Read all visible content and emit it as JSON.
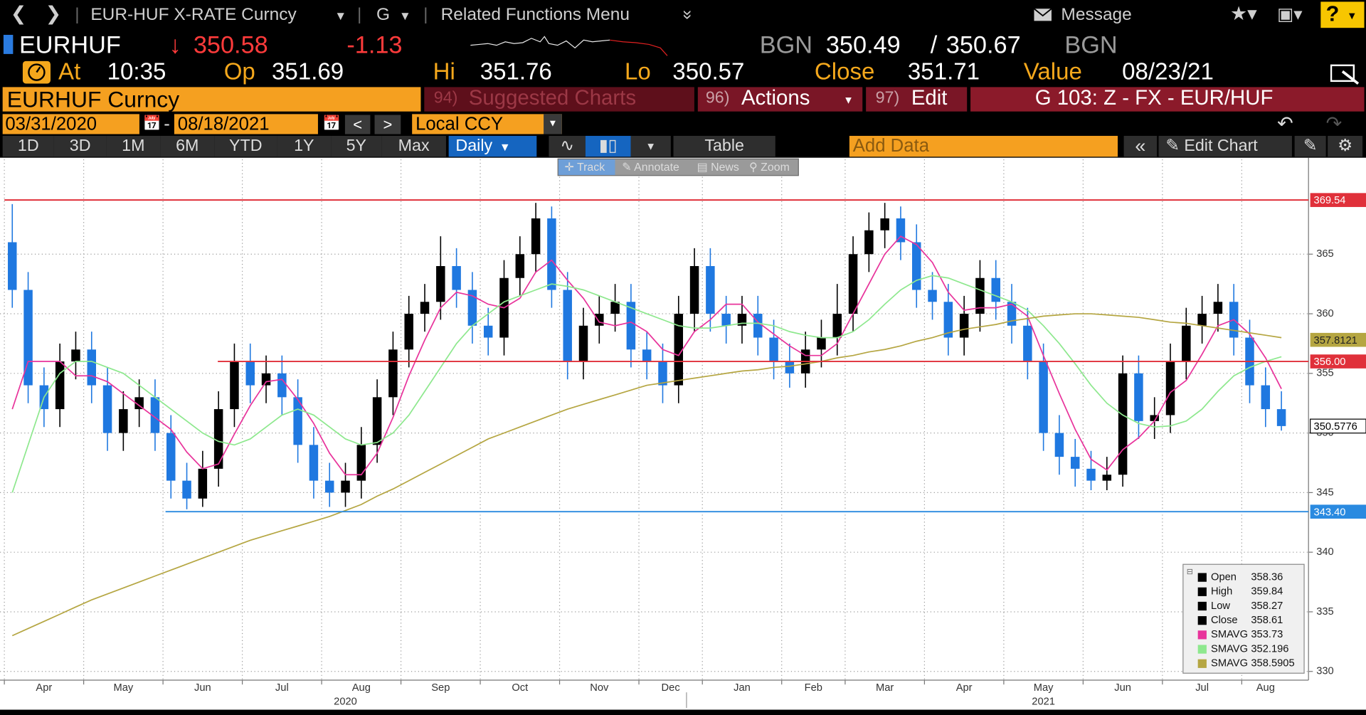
{
  "toolbar": {
    "security": "EUR-HUF X-RATE Curncy",
    "mode": "G",
    "menu": "Related Functions Menu",
    "message": "Message",
    "help": "?"
  },
  "quote": {
    "ticker": "EURHUF",
    "last": "350.58",
    "change": "-1.13",
    "bid_source": "BGN",
    "bid": "350.49",
    "ask": "350.67",
    "ask_source": "BGN",
    "time_label": "At",
    "time": "10:35",
    "open_label": "Op",
    "open": "351.69",
    "high_label": "Hi",
    "high": "351.76",
    "low_label": "Lo",
    "low": "350.57",
    "close_label": "Close",
    "close": "351.71",
    "value_label": "Value",
    "value_date": "08/23/21"
  },
  "bar": {
    "security": "EURHUF Curncy",
    "suggested_num": "94)",
    "suggested": "Suggested Charts",
    "actions_num": "96)",
    "actions": "Actions",
    "edit_num": "97)",
    "edit": "Edit",
    "page": "G 103: Z - FX - EUR/HUF"
  },
  "range": {
    "start": "03/31/2020",
    "end": "08/18/2021",
    "currency": "Local CCY"
  },
  "periods": [
    "1D",
    "3D",
    "1M",
    "6M",
    "YTD",
    "1Y",
    "5Y",
    "Max"
  ],
  "frequency": "Daily",
  "table": "Table",
  "add_data": "Add Data",
  "edit_chart": "Edit Chart",
  "tools": [
    "Track",
    "Annotate",
    "News",
    "Zoom"
  ],
  "chart_data": {
    "type": "candlestick",
    "up_color": "#000000",
    "down_color": "#1f78e0",
    "grid": true,
    "categories": [
      "Apr",
      null,
      null,
      null,
      null,
      "May",
      null,
      null,
      null,
      null,
      "Jun",
      null,
      null,
      null,
      null,
      "Jul",
      null,
      null,
      null,
      null,
      "Aug",
      null,
      null,
      null,
      null,
      "Sep",
      null,
      null,
      null,
      null,
      "Oct",
      null,
      null,
      null,
      null,
      "Nov",
      null,
      null,
      null,
      null,
      "Dec",
      null,
      null,
      null,
      "Jan",
      null,
      null,
      null,
      null,
      "Feb",
      null,
      null,
      null,
      "Mar",
      null,
      null,
      null,
      null,
      "Apr",
      null,
      null,
      null,
      null,
      "May",
      null,
      null,
      null,
      null,
      "Jun",
      null,
      null,
      null,
      null,
      "Jul",
      null,
      null,
      null,
      null,
      "Aug",
      null,
      null
    ],
    "year_categories": [
      null,
      null,
      null,
      null,
      null,
      null,
      null,
      null,
      null,
      null,
      null,
      null,
      null,
      null,
      null,
      null,
      null,
      null,
      null,
      null,
      null,
      "2020",
      null,
      null,
      null,
      null,
      null,
      null,
      null,
      null,
      null,
      null,
      null,
      null,
      null,
      null,
      null,
      null,
      null,
      null,
      null,
      null,
      null,
      null,
      null,
      null,
      null,
      null,
      null,
      null,
      null,
      null,
      null,
      null,
      null,
      null,
      null,
      null,
      null,
      null,
      null,
      null,
      null,
      null,
      null,
      "2021",
      null,
      null,
      null,
      null,
      null,
      null,
      null,
      null,
      null,
      null,
      null,
      null,
      null,
      null,
      null
    ],
    "open": [
      366,
      362,
      354,
      352,
      356,
      357,
      354,
      350,
      352,
      353,
      350,
      346,
      344.5,
      347,
      352,
      356,
      354,
      355,
      353,
      349,
      346,
      345,
      346,
      349,
      353,
      357,
      360,
      361,
      364,
      362,
      359,
      358,
      363,
      365,
      368,
      362,
      356,
      359,
      360,
      361,
      357,
      356,
      354,
      360,
      364,
      360,
      359,
      360,
      358,
      356,
      355,
      357,
      358,
      360,
      365,
      367,
      368,
      366,
      362,
      361,
      358,
      360,
      363,
      361,
      359,
      356,
      350,
      348,
      347,
      346,
      346.5,
      355,
      351,
      351.5,
      356,
      359,
      360,
      361,
      358,
      354,
      352
    ],
    "high": [
      369.2,
      363.5,
      355.5,
      357.5,
      358.5,
      358.5,
      355.5,
      353.5,
      354.5,
      354.5,
      351.5,
      347.5,
      348.5,
      353.5,
      357.5,
      357.5,
      356.5,
      356.5,
      354.5,
      350.5,
      347.5,
      347.5,
      350.5,
      354.5,
      358.5,
      361.5,
      362.5,
      366.5,
      365.5,
      363.5,
      360.5,
      364.5,
      366.5,
      369.3,
      369,
      363.5,
      360.5,
      361.5,
      362.5,
      362.5,
      358.5,
      357.5,
      361.5,
      365.5,
      365.5,
      361.5,
      361.5,
      361.5,
      359.5,
      357.5,
      358.5,
      359.5,
      362.5,
      366.5,
      368.5,
      369.3,
      369,
      367.5,
      363.5,
      362.5,
      361.5,
      364.5,
      364.5,
      362.5,
      360.5,
      357.5,
      351.5,
      349.5,
      348.5,
      348,
      356.5,
      356.5,
      353,
      357.5,
      360.5,
      361.5,
      362.5,
      362.5,
      359.5,
      355.5,
      353.5
    ],
    "low": [
      360.5,
      352.5,
      350.5,
      350.5,
      354.5,
      352.5,
      348.5,
      348.5,
      350.5,
      348.5,
      344.5,
      343.6,
      343.8,
      345.5,
      350.5,
      352.5,
      352.5,
      351.5,
      347.5,
      344.5,
      343.8,
      343.8,
      344.5,
      347.5,
      351.5,
      355.5,
      358.5,
      359.5,
      360.5,
      357.5,
      356.5,
      356.5,
      361.5,
      363.5,
      360.5,
      354.5,
      354.5,
      357.5,
      358.5,
      355.5,
      354.5,
      352.5,
      352.5,
      358.5,
      358.5,
      357.5,
      357.5,
      356.5,
      354.5,
      353.8,
      353.8,
      355.5,
      356.5,
      358.5,
      363.5,
      365.5,
      364.5,
      360.5,
      359.5,
      356.5,
      356.5,
      358.5,
      359.5,
      357.5,
      354.5,
      348.5,
      346.5,
      345.5,
      345.2,
      345.2,
      345.5,
      349.5,
      349.5,
      350,
      354.5,
      357.5,
      358.5,
      356.5,
      352.5,
      350.5,
      350.2
    ],
    "close": [
      362,
      354,
      352,
      356,
      357,
      354,
      350,
      352,
      353,
      350,
      346,
      344.5,
      347,
      352,
      356,
      354,
      355,
      353,
      349,
      346,
      345,
      346,
      349,
      353,
      357,
      360,
      361,
      364,
      362,
      359,
      358,
      363,
      365,
      368,
      362,
      356,
      359,
      360,
      361,
      357,
      356,
      354,
      360,
      364,
      360,
      359,
      360,
      358,
      356,
      355,
      357,
      358,
      360,
      365,
      367,
      368,
      366,
      362,
      361,
      358,
      360,
      363,
      361,
      359,
      356,
      350,
      348,
      347,
      346,
      346.5,
      355,
      351,
      351.5,
      356,
      359,
      360,
      361,
      358,
      354,
      352,
      350.58
    ],
    "series": [
      {
        "name": "SMAVG",
        "color": "#e8339b",
        "tooltip_value": 353.73,
        "values": [
          352,
          356,
          356,
          356,
          354.8,
          354.8,
          354.3,
          353.3,
          352.3,
          351.3,
          350.3,
          348.4,
          347,
          347.4,
          349.9,
          352.3,
          354.3,
          354.5,
          352.8,
          350.8,
          348.3,
          346.5,
          346.5,
          348.3,
          351.3,
          354.8,
          357.8,
          360.5,
          361.8,
          361.5,
          360.8,
          360.5,
          361.3,
          363.5,
          364.5,
          362.8,
          361.3,
          359.3,
          359,
          359.3,
          358.5,
          357,
          356.5,
          358.5,
          359.5,
          360.8,
          360.8,
          359.3,
          358.3,
          357.3,
          356.5,
          356.5,
          357.5,
          360,
          362.5,
          365,
          366.5,
          365.8,
          364.3,
          361.8,
          360.3,
          360.5,
          360.5,
          360.8,
          359.8,
          356.5,
          353.3,
          350.3,
          347.8,
          346.9,
          348.6,
          349.6,
          351,
          353.4,
          354.4,
          356.6,
          359,
          359.5,
          358.3,
          356.3,
          353.7
        ]
      },
      {
        "name": "SMAVG",
        "color": "#8ee88e",
        "tooltip_value": 352.196,
        "values": [
          345,
          349,
          353,
          355,
          356,
          356,
          355.5,
          355,
          354,
          353,
          352,
          351,
          350,
          349.3,
          349,
          349.5,
          350.5,
          351.5,
          352,
          351.5,
          350.5,
          349.5,
          349,
          349.2,
          350,
          351.5,
          353.5,
          355.5,
          357.5,
          359,
          360,
          361,
          361.5,
          362,
          362.5,
          362.3,
          362,
          361.5,
          361,
          360.5,
          360,
          359.5,
          359,
          358.8,
          358.8,
          359,
          359.2,
          359.2,
          359,
          358.5,
          358.2,
          358,
          358,
          358.5,
          359.5,
          360.8,
          362,
          362.8,
          363.2,
          363,
          362.5,
          362,
          361.5,
          361,
          360.3,
          359,
          357.5,
          355.8,
          354,
          352.5,
          351.5,
          350.8,
          350.5,
          350.6,
          351,
          352,
          353.5,
          354.8,
          355.5,
          356,
          356.4
        ]
      },
      {
        "name": "SMAVG",
        "color": "#b5a642",
        "tooltip_value": 358.5905,
        "axis_label": 357.8121,
        "values": [
          333,
          333.6,
          334.2,
          334.8,
          335.4,
          336,
          336.5,
          337,
          337.5,
          338,
          338.5,
          339,
          339.5,
          340,
          340.5,
          341,
          341.4,
          341.8,
          342.2,
          342.6,
          343,
          343.5,
          344,
          344.7,
          345.3,
          346,
          346.7,
          347.4,
          348.1,
          348.8,
          349.5,
          350,
          350.5,
          351,
          351.5,
          352,
          352.4,
          352.8,
          353.2,
          353.6,
          354,
          354.2,
          354.4,
          354.6,
          354.8,
          355,
          355.2,
          355.3,
          355.5,
          355.6,
          355.8,
          356,
          356.3,
          356.5,
          356.8,
          357,
          357.3,
          357.7,
          358,
          358.4,
          358.7,
          358.9,
          359.1,
          359.4,
          359.6,
          359.8,
          359.9,
          360,
          360,
          359.9,
          359.8,
          359.7,
          359.5,
          359.3,
          359.2,
          359,
          358.8,
          358.6,
          358.4,
          358.2,
          358
        ]
      }
    ],
    "hlines": [
      {
        "value": 369.54,
        "color": "#e0303a"
      },
      {
        "value": 356,
        "label": "356.00",
        "color": "#e0303a"
      },
      {
        "value": 343.4,
        "label": "343.40",
        "color": "#2a8ae0"
      }
    ],
    "last_value": 350.5776,
    "tooltip": [
      {
        "name": "Open",
        "value": 358.36
      },
      {
        "name": "High",
        "value": 359.84
      },
      {
        "name": "Low",
        "value": 358.27
      },
      {
        "name": "Close",
        "value": 358.61
      }
    ],
    "ylim": [
      329.34,
      372.95
    ],
    "yticks": [
      330,
      335,
      340,
      345,
      350,
      355,
      360,
      365
    ]
  }
}
